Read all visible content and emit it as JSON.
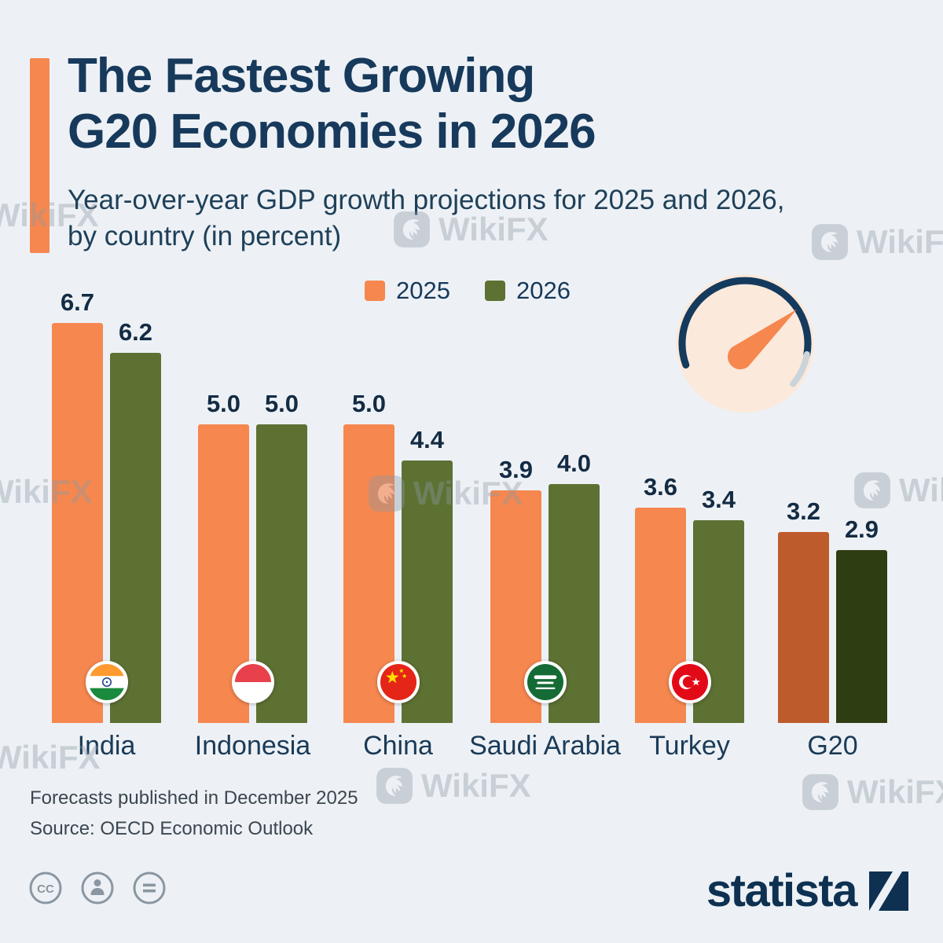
{
  "title": {
    "line1": "The Fastest Growing",
    "line2": "G20 Economies in 2026"
  },
  "subtitle": {
    "line1": "Year-over-year GDP growth projections for 2025 and 2026,",
    "line2": "by country (in percent)"
  },
  "legend": {
    "items": [
      {
        "label": "2025",
        "color": "#F5874F"
      },
      {
        "label": "2026",
        "color": "#5D7133"
      }
    ]
  },
  "chart_data": {
    "type": "bar",
    "categories": [
      "India",
      "Indonesia",
      "China",
      "Saudi Arabia",
      "Turkey",
      "G20"
    ],
    "series": [
      {
        "name": "2025",
        "color": "#F5874F",
        "values": [
          6.7,
          5.0,
          5.0,
          3.9,
          3.6,
          3.2
        ]
      },
      {
        "name": "2026",
        "color": "#5D7133",
        "values": [
          6.2,
          5.0,
          4.4,
          4.0,
          3.4,
          2.9
        ]
      }
    ],
    "g20_colors": {
      "2025": "#BE5B2C",
      "2026": "#2F3D12"
    },
    "ylim": [
      0,
      7
    ],
    "grid": false,
    "legend_position": "top",
    "value_labels": true,
    "flags": [
      "india",
      "indonesia",
      "china",
      "saudi-arabia",
      "turkey",
      null
    ]
  },
  "footer": {
    "line1": "Forecasts published in December 2025",
    "line2": "Source: OECD Economic Outlook"
  },
  "branding": {
    "logo_text": "statista"
  },
  "watermark": {
    "text": "WikiFX"
  }
}
